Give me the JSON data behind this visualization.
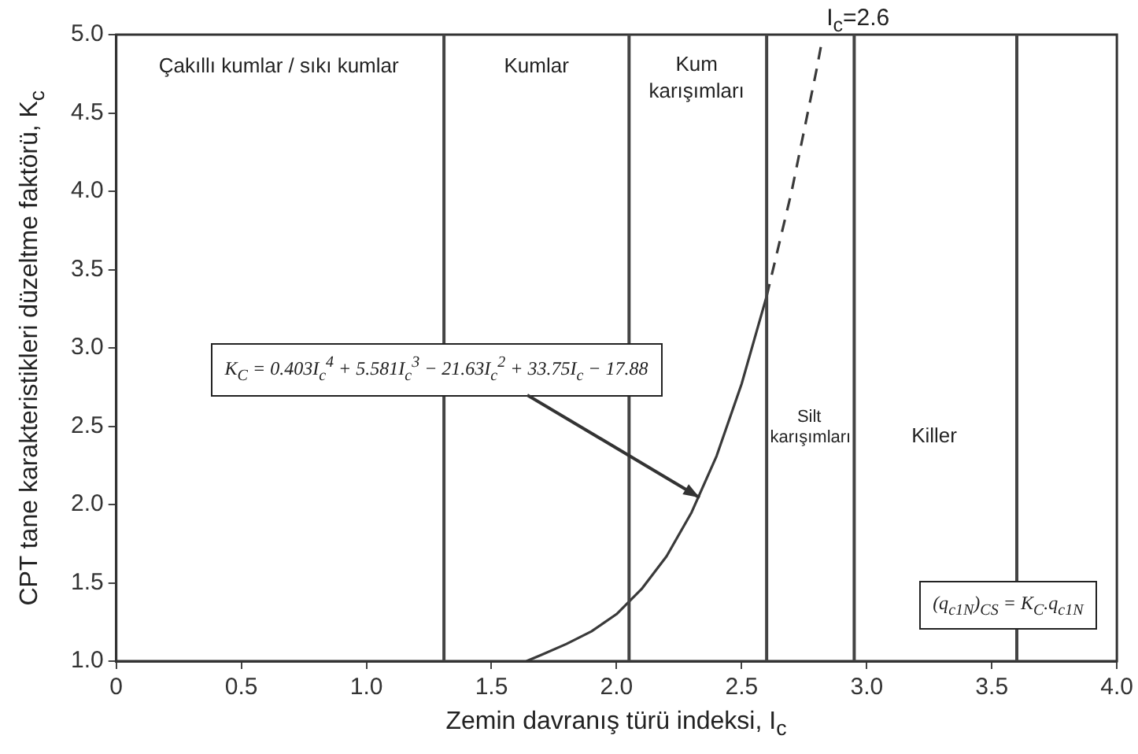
{
  "chart_data": {
    "type": "line",
    "xlabel": "Zemin davranış türü indeksi,  I$_{c}$",
    "ylabel": "CPT tane karakteristikleri düzeltme faktörü, K$_{c}$",
    "xlim": [
      0,
      4
    ],
    "xticks": [
      0,
      0.5,
      {
        "value": 1,
        "label": "1.0"
      },
      1.5,
      {
        "value": 2,
        "label": "2.0"
      },
      2.5,
      {
        "value": 3,
        "label": "3.0"
      },
      3.5,
      {
        "value": 4,
        "label": "4.0"
      }
    ],
    "ylim": [
      1,
      5
    ],
    "yticks": [
      {
        "value": 1,
        "label": "1.0"
      },
      1.5,
      {
        "value": 2,
        "label": "2.0"
      },
      2.5,
      {
        "value": 3,
        "label": "3.0"
      },
      3.5,
      {
        "value": 4,
        "label": "4.0"
      },
      4.5,
      {
        "value": 5,
        "label": "5.0"
      }
    ],
    "grid": false,
    "legend": false,
    "marker": "none",
    "series": [
      {
        "color": "#3a3a3a",
        "line_style": "solid",
        "x": [
          1.64,
          1.7,
          1.8,
          1.9,
          2.0,
          2.1,
          2.2,
          2.3,
          2.4,
          2.5,
          2.6
        ],
        "values": [
          1.0,
          1.04,
          1.11,
          1.19,
          1.3,
          1.46,
          1.67,
          1.95,
          2.31,
          2.77,
          3.33
        ]
      },
      {
        "color": "#3a3a3a",
        "line_style": "dashed",
        "x": [
          2.6,
          2.7,
          2.8,
          2.82
        ],
        "values": [
          3.33,
          4.0,
          4.78,
          4.95
        ]
      }
    ],
    "ref_lines": [
      {
        "axis": "x",
        "value": 1.31
      },
      {
        "axis": "x",
        "value": 2.05
      },
      {
        "axis": "x",
        "value": 2.6,
        "label": "I$_{c}$=2.6"
      },
      {
        "axis": "x",
        "value": 2.95
      },
      {
        "axis": "x",
        "value": 3.6
      }
    ],
    "annotations": [
      "Çakıllı kumlar / sıkı kumlar",
      "Kumlar",
      "Kum karışımları",
      "Silt karışımları",
      "Killer",
      "K$_{C}$ = 0.403I$_{c}$$^{4}$ + 5.581I$_{c}$$^{3}$ − 21.63I$_{c}$$^{2}$ + 33.75I$_{c}$ − 17.88",
      "(q$_{c1N}$)$_{CS}$ = K$_{C}$.q$_{c1N}$"
    ]
  }
}
